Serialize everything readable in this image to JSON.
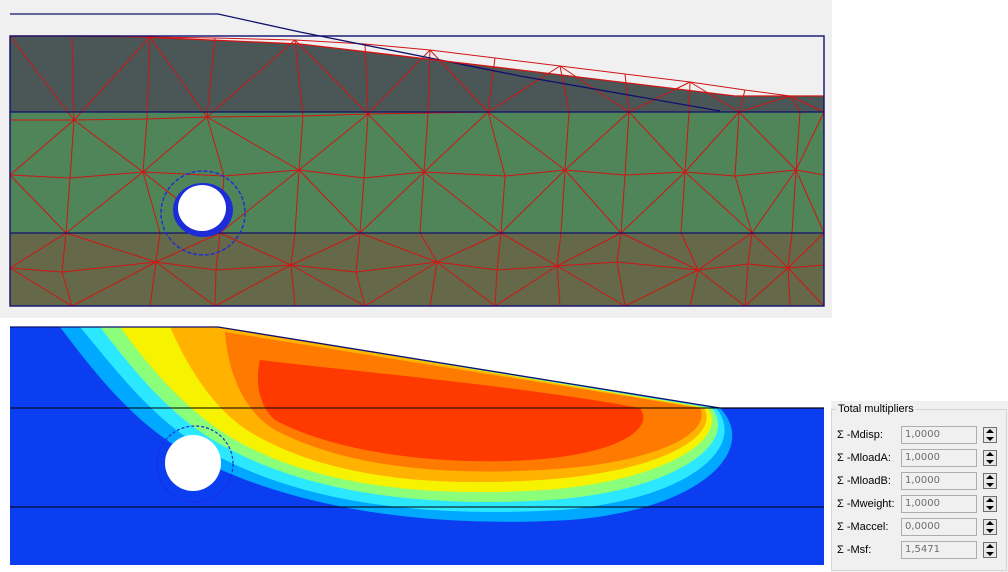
{
  "panels": {
    "mesh_view": {
      "name": "finite-element-mesh"
    },
    "contour_view": {
      "name": "safety-analysis-shading"
    }
  },
  "colors": {
    "layer_top": "#4b5656",
    "layer_middle": "#4f8559",
    "layer_bottom": "#656849",
    "mesh_lines": "#d01515",
    "boundary_lines": "#10106e",
    "tunnel_lining": "#1e2cd8"
  },
  "total_multipliers": {
    "title": "Total multipliers",
    "rows": [
      {
        "label": "Σ -Mdisp:",
        "value": "1,0000"
      },
      {
        "label": "Σ -MloadA:",
        "value": "1,0000"
      },
      {
        "label": "Σ -MloadB:",
        "value": "1,0000"
      },
      {
        "label": "Σ -Mweight:",
        "value": "1,0000"
      },
      {
        "label": "Σ -Maccel:",
        "value": "0,0000"
      },
      {
        "label": "Σ -Msf:",
        "value": "1,5471"
      }
    ]
  }
}
